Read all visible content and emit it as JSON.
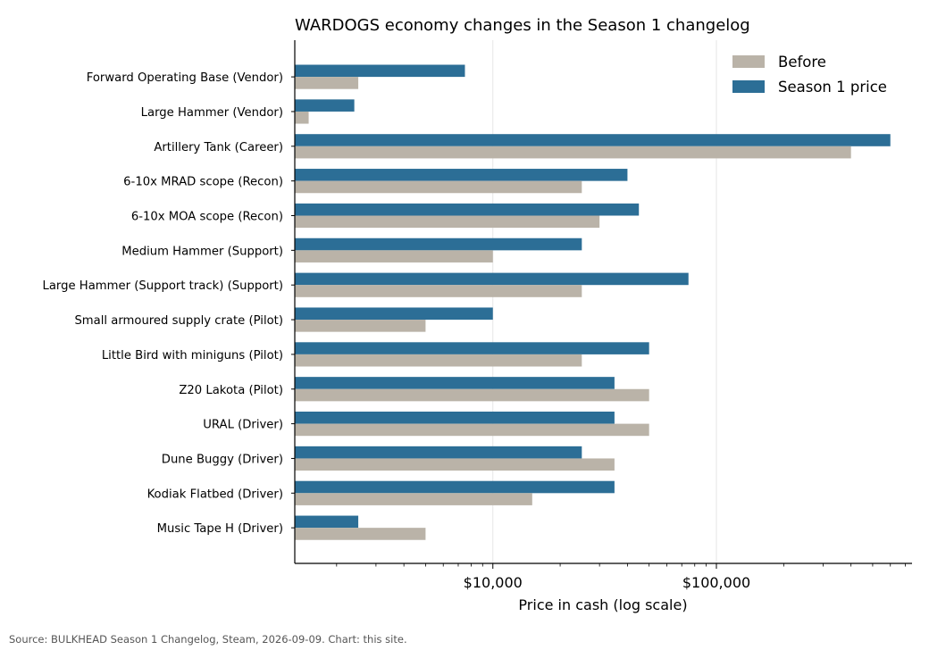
{
  "chart_data": {
    "type": "bar",
    "orientation": "horizontal",
    "title": "WARDOGS economy changes in the Season 1 changelog",
    "xlabel": "Price in cash (log scale)",
    "ylabel": "",
    "xscale": "log",
    "xlim": [
      1300,
      750000
    ],
    "xticks": [
      {
        "value": 10000,
        "label": "$10,000"
      },
      {
        "value": 100000,
        "label": "$100,000"
      }
    ],
    "grid": "x major",
    "legend_position": "top-right",
    "categories": [
      "Forward Operating Base (Vendor)",
      "Large Hammer (Vendor)",
      "Artillery Tank (Career)",
      "6-10x MRAD scope (Recon)",
      "6-10x MOA scope (Recon)",
      "Medium Hammer (Support)",
      "Large Hammer (Support track) (Support)",
      "Small armoured supply crate (Pilot)",
      "Little Bird with miniguns (Pilot)",
      "Z20 Lakota (Pilot)",
      "URAL (Driver)",
      "Dune Buggy (Driver)",
      "Kodiak Flatbed (Driver)",
      "Music Tape H (Driver)"
    ],
    "series": [
      {
        "name": "Before",
        "color": "#bab3a8",
        "values": [
          2500,
          1500,
          400000,
          25000,
          30000,
          10000,
          25000,
          5000,
          25000,
          50000,
          50000,
          35000,
          15000,
          5000
        ]
      },
      {
        "name": "Season 1 price",
        "color": "#2c6e96",
        "values": [
          7500,
          2400,
          600000,
          40000,
          45000,
          25000,
          75000,
          10000,
          50000,
          35000,
          35000,
          25000,
          35000,
          2500
        ]
      }
    ]
  },
  "footer": {
    "source": "Source: BULKHEAD Season 1 Changelog, Steam, 2026-09-09. Chart: this site."
  }
}
